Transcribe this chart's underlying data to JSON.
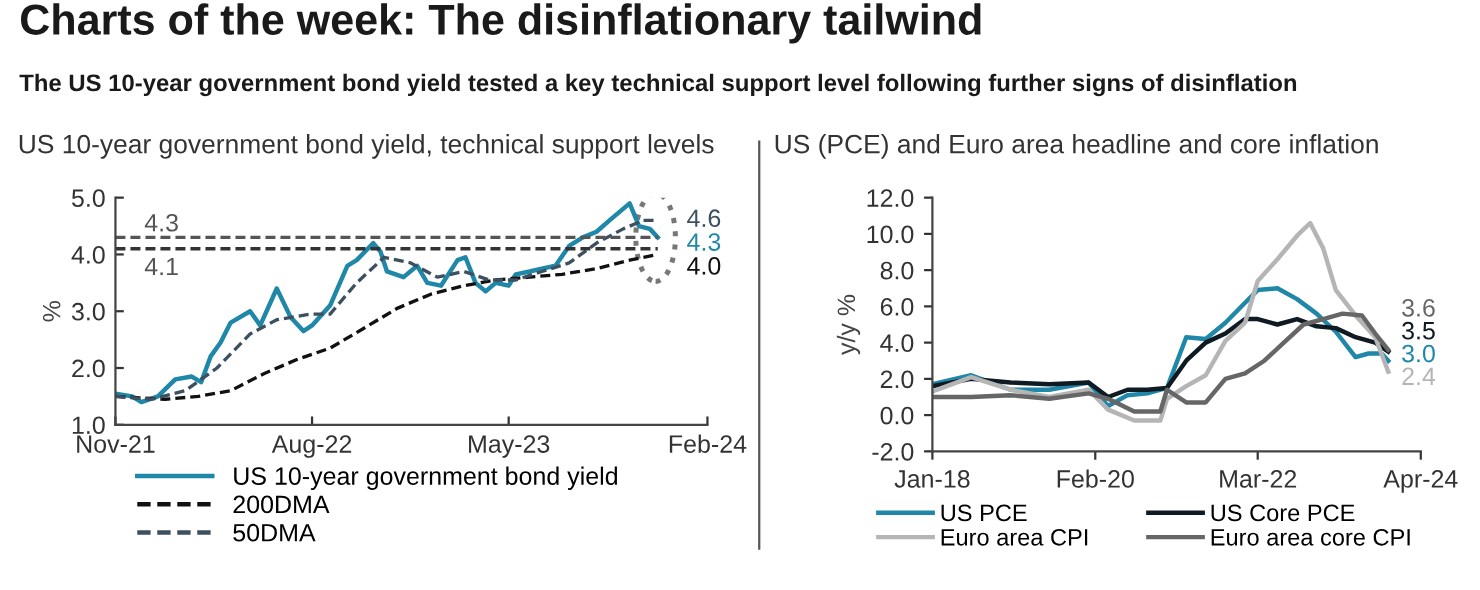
{
  "chart_data": [
    {
      "type": "other",
      "title": "Charts of the week: The disinflationary tailwind",
      "subtitle": "The US 10-year government bond yield tested a key technical support level following further signs of disinflation"
    },
    {
      "type": "line",
      "title": "US 10-year government bond yield, technical support levels",
      "ylabel": "%",
      "xlim": [
        "2021-11-01",
        "2024-02-01"
      ],
      "xticks": [
        {
          "value": "2021-11-01",
          "label": "Nov-21"
        },
        {
          "value": "2022-08-01",
          "label": "Aug-22"
        },
        {
          "value": "2023-05-01",
          "label": "May-23"
        },
        {
          "value": "2024-02-01",
          "label": "Feb-24"
        }
      ],
      "ylim": [
        1,
        5
      ],
      "yticks": [
        {
          "value": 1,
          "label": "1.0"
        },
        {
          "value": 2,
          "label": "2.0"
        },
        {
          "value": 3,
          "label": "3.0"
        },
        {
          "value": 4,
          "label": "4.0"
        },
        {
          "value": 5,
          "label": "5.0"
        }
      ],
      "grid": false,
      "legend": "bottom",
      "ref_lines": [
        {
          "axis": "y",
          "value": 4.3,
          "label": "4.3",
          "color": "#555555",
          "line_style": "dashed"
        },
        {
          "axis": "y",
          "value": 4.1,
          "label": "4.1",
          "color": "#333333",
          "line_style": "dashed"
        }
      ],
      "series": [
        {
          "name": "US 10-year government bond yield",
          "color": "#1f87a8",
          "line_style": "solid",
          "x": [
            "2021-11-01",
            "2021-11-24",
            "2021-12-07",
            "2021-12-30",
            "2022-01-23",
            "2022-02-15",
            "2022-02-28",
            "2022-03-13",
            "2022-03-27",
            "2022-04-10",
            "2022-05-07",
            "2022-05-21",
            "2022-06-13",
            "2022-07-02",
            "2022-07-20",
            "2022-08-01",
            "2022-08-26",
            "2022-09-19",
            "2022-10-02",
            "2022-10-25",
            "2022-11-04",
            "2022-11-13",
            "2022-12-06",
            "2022-12-25",
            "2023-01-08",
            "2023-01-27",
            "2023-02-19",
            "2023-03-02",
            "2023-03-16",
            "2023-03-30",
            "2023-04-13",
            "2023-05-01",
            "2023-05-11",
            "2023-05-30",
            "2023-06-16",
            "2023-07-05",
            "2023-07-24",
            "2023-08-12",
            "2023-08-31",
            "2023-09-18",
            "2023-10-02",
            "2023-10-16",
            "2023-10-29",
            "2023-11-13",
            "2023-11-24"
          ],
          "values": [
            1.55,
            1.5,
            1.4,
            1.5,
            1.8,
            1.85,
            1.75,
            2.2,
            2.45,
            2.8,
            3.0,
            2.75,
            3.4,
            2.9,
            2.65,
            2.75,
            3.1,
            3.8,
            3.9,
            4.2,
            4.05,
            3.7,
            3.6,
            3.8,
            3.5,
            3.45,
            3.9,
            3.95,
            3.5,
            3.35,
            3.5,
            3.45,
            3.65,
            3.7,
            3.75,
            3.8,
            4.15,
            4.3,
            4.4,
            4.6,
            4.75,
            4.9,
            4.5,
            4.45,
            4.3
          ],
          "value_labels": [
            null,
            null,
            null,
            null,
            null,
            null,
            null,
            null,
            null,
            null,
            null,
            null,
            null,
            null,
            null,
            null,
            null,
            null,
            null,
            null,
            null,
            null,
            null,
            null,
            null,
            null,
            null,
            null,
            null,
            null,
            null,
            null,
            null,
            null,
            null,
            null,
            null,
            null,
            null,
            null,
            null,
            null,
            null,
            null,
            "4.3"
          ]
        },
        {
          "name": "200DMA",
          "color": "#111111",
          "line_style": "dashed",
          "x": [
            "2021-11-01",
            "2022-01-09",
            "2022-02-24",
            "2022-04-10",
            "2022-05-26",
            "2022-07-11",
            "2022-08-26",
            "2022-10-12",
            "2022-11-27",
            "2023-01-13",
            "2023-02-28",
            "2023-04-13",
            "2023-05-30",
            "2023-07-14",
            "2023-08-31",
            "2023-10-16",
            "2023-11-24"
          ],
          "values": [
            1.5,
            1.45,
            1.5,
            1.6,
            1.9,
            2.15,
            2.35,
            2.7,
            3.05,
            3.3,
            3.45,
            3.55,
            3.6,
            3.65,
            3.75,
            3.9,
            4.0
          ],
          "value_labels": [
            null,
            null,
            null,
            null,
            null,
            null,
            null,
            null,
            null,
            null,
            null,
            null,
            null,
            null,
            null,
            null,
            "4.0"
          ]
        },
        {
          "name": "50DMA",
          "color": "#3d5060",
          "line_style": "dashed",
          "x": [
            "2021-11-01",
            "2021-12-21",
            "2022-02-06",
            "2022-03-22",
            "2022-05-07",
            "2022-06-13",
            "2022-07-30",
            "2022-08-26",
            "2022-10-02",
            "2022-11-09",
            "2022-12-16",
            "2023-01-22",
            "2023-02-28",
            "2023-04-04",
            "2023-05-11",
            "2023-06-16",
            "2023-07-24",
            "2023-08-31",
            "2023-10-07",
            "2023-11-04",
            "2023-11-24"
          ],
          "values": [
            1.5,
            1.45,
            1.6,
            2.0,
            2.6,
            2.85,
            2.95,
            2.95,
            3.5,
            3.95,
            3.85,
            3.6,
            3.7,
            3.55,
            3.55,
            3.7,
            3.85,
            4.2,
            4.45,
            4.6,
            4.6
          ],
          "value_labels": [
            null,
            null,
            null,
            null,
            null,
            null,
            null,
            null,
            null,
            null,
            null,
            null,
            null,
            null,
            null,
            null,
            null,
            null,
            null,
            null,
            "4.6"
          ]
        }
      ]
    },
    {
      "type": "line",
      "title": "US (PCE) and Euro area headline and core inflation",
      "ylabel": "y/y %",
      "xlim": [
        "2018-01-01",
        "2024-04-01"
      ],
      "xticks": [
        {
          "value": "2018-01-01",
          "label": "Jan-18"
        },
        {
          "value": "2020-02-01",
          "label": "Feb-20"
        },
        {
          "value": "2022-03-01",
          "label": "Mar-22"
        },
        {
          "value": "2024-04-01",
          "label": "Apr-24"
        }
      ],
      "ylim": [
        -2,
        12
      ],
      "yticks": [
        {
          "value": -2,
          "label": "-2.0"
        },
        {
          "value": 0,
          "label": "0.0"
        },
        {
          "value": 2,
          "label": "2.0"
        },
        {
          "value": 4,
          "label": "4.0"
        },
        {
          "value": 6,
          "label": "6.0"
        },
        {
          "value": 8,
          "label": "8.0"
        },
        {
          "value": 10,
          "label": "10.0"
        },
        {
          "value": 12,
          "label": "12.0"
        }
      ],
      "grid": false,
      "legend": "bottom",
      "series": [
        {
          "name": "US PCE",
          "color": "#1f87a8",
          "line_style": "solid",
          "x": [
            "2018-01",
            "2018-07",
            "2019-01",
            "2019-07",
            "2020-01",
            "2020-04",
            "2020-07",
            "2020-10",
            "2021-01",
            "2021-04",
            "2021-07",
            "2021-10",
            "2022-01",
            "2022-03",
            "2022-06",
            "2022-09",
            "2022-12",
            "2023-03",
            "2023-06",
            "2023-08",
            "2023-10",
            "2023-11"
          ],
          "values": [
            1.7,
            2.2,
            1.4,
            1.4,
            1.8,
            0.5,
            1.1,
            1.2,
            1.5,
            4.3,
            4.2,
            5.1,
            6.2,
            6.9,
            7.0,
            6.4,
            5.6,
            4.6,
            3.2,
            3.4,
            3.4,
            3.0
          ],
          "value_labels": [
            null,
            null,
            null,
            null,
            null,
            null,
            null,
            null,
            null,
            null,
            null,
            null,
            null,
            null,
            null,
            null,
            null,
            null,
            null,
            null,
            null,
            "3.0"
          ]
        },
        {
          "name": "US Core PCE",
          "color": "#0f1a22",
          "line_style": "solid",
          "x": [
            "2018-01",
            "2018-07",
            "2019-01",
            "2019-07",
            "2020-01",
            "2020-04",
            "2020-07",
            "2020-10",
            "2021-01",
            "2021-04",
            "2021-07",
            "2021-10",
            "2022-01",
            "2022-03",
            "2022-06",
            "2022-09",
            "2022-12",
            "2023-03",
            "2023-06",
            "2023-09",
            "2023-11"
          ],
          "values": [
            1.6,
            2.0,
            1.8,
            1.7,
            1.8,
            1.0,
            1.4,
            1.4,
            1.5,
            3.0,
            4.0,
            4.5,
            5.3,
            5.3,
            5.0,
            5.3,
            4.9,
            4.8,
            4.3,
            4.0,
            3.5
          ],
          "value_labels": [
            null,
            null,
            null,
            null,
            null,
            null,
            null,
            null,
            null,
            null,
            null,
            null,
            null,
            null,
            null,
            null,
            null,
            null,
            null,
            null,
            "3.5"
          ]
        },
        {
          "name": "Euro area CPI",
          "color": "#b5b5b5",
          "line_style": "solid",
          "x": [
            "2018-01",
            "2018-07",
            "2019-01",
            "2019-07",
            "2020-01",
            "2020-04",
            "2020-08",
            "2020-12",
            "2021-01",
            "2021-04",
            "2021-07",
            "2021-10",
            "2022-01",
            "2022-03",
            "2022-06",
            "2022-09",
            "2022-11",
            "2023-01",
            "2023-03",
            "2023-06",
            "2023-09",
            "2023-11"
          ],
          "values": [
            1.3,
            2.1,
            1.4,
            1.0,
            1.4,
            0.3,
            -0.3,
            -0.3,
            0.9,
            1.6,
            2.2,
            4.1,
            5.1,
            7.4,
            8.6,
            9.9,
            10.6,
            9.2,
            6.9,
            5.5,
            4.3,
            2.4
          ],
          "value_labels": [
            null,
            null,
            null,
            null,
            null,
            null,
            null,
            null,
            null,
            null,
            null,
            null,
            null,
            null,
            null,
            null,
            null,
            null,
            null,
            null,
            null,
            "2.4"
          ]
        },
        {
          "name": "Euro area core CPI",
          "color": "#666666",
          "line_style": "solid",
          "x": [
            "2018-01",
            "2018-07",
            "2019-01",
            "2019-07",
            "2020-01",
            "2020-04",
            "2020-08",
            "2020-12",
            "2021-01",
            "2021-04",
            "2021-07",
            "2021-10",
            "2022-01",
            "2022-04",
            "2022-07",
            "2022-10",
            "2023-01",
            "2023-04",
            "2023-07",
            "2023-09",
            "2023-11"
          ],
          "values": [
            1.0,
            1.0,
            1.1,
            0.9,
            1.2,
            0.9,
            0.2,
            0.2,
            1.4,
            0.7,
            0.7,
            2.0,
            2.3,
            3.0,
            4.0,
            5.0,
            5.3,
            5.6,
            5.5,
            4.5,
            3.6
          ],
          "value_labels": [
            null,
            null,
            null,
            null,
            null,
            null,
            null,
            null,
            null,
            null,
            null,
            null,
            null,
            null,
            null,
            null,
            null,
            null,
            null,
            null,
            "3.6"
          ]
        }
      ]
    }
  ]
}
